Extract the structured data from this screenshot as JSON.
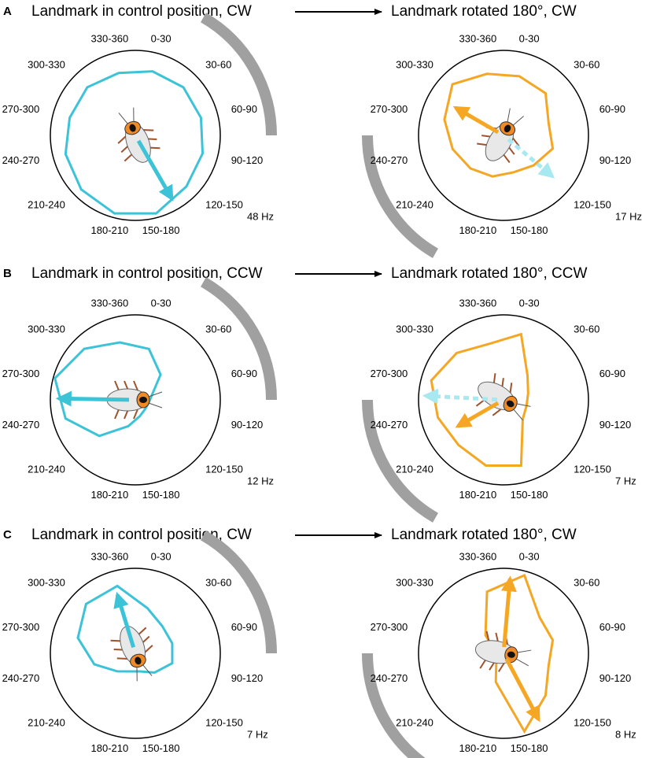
{
  "chart_data": [
    {
      "type": "radar",
      "panel": "A",
      "title": "Landmark in control position, CW",
      "annotation": "48 Hz",
      "categories": [
        "0-30",
        "30-60",
        "60-90",
        "90-120",
        "120-150",
        "150-180",
        "180-210",
        "210-240",
        "240-270",
        "270-300",
        "300-330",
        "330-360"
      ],
      "values": [
        0.78,
        0.8,
        0.8,
        0.82,
        0.85,
        0.95,
        0.95,
        0.9,
        0.85,
        0.8,
        0.8,
        0.76
      ],
      "color": "#3cc3d8",
      "ylim": [
        0,
        1
      ],
      "mean_vectors": [
        {
          "angle": 150,
          "length": 0.86,
          "color": "#3cc3d8",
          "dashed": false
        }
      ],
      "landmark_arc": [
        30,
        90
      ]
    },
    {
      "type": "radar",
      "title": "Landmark rotated 180°, CW",
      "annotation": "17 Hz",
      "categories": [
        "0-30",
        "30-60",
        "60-90",
        "90-120",
        "120-150",
        "150-180",
        "180-210",
        "210-240",
        "240-270",
        "270-300",
        "300-330",
        "330-360"
      ],
      "values": [
        0.72,
        0.7,
        0.55,
        0.6,
        0.5,
        0.45,
        0.5,
        0.55,
        0.62,
        0.72,
        0.85,
        0.75
      ],
      "color": "#f5a623",
      "ylim": [
        0,
        1
      ],
      "mean_vectors": [
        {
          "angle": 300,
          "length": 0.65,
          "color": "#f5a623",
          "dashed": false
        },
        {
          "angle": 130,
          "length": 0.75,
          "color": "#a8e8f0",
          "dashed": true
        }
      ],
      "landmark_arc": [
        210,
        270
      ]
    },
    {
      "type": "radar",
      "panel": "B",
      "title": "Landmark in control position, CCW",
      "annotation": "12 Hz",
      "categories": [
        "0-30",
        "30-60",
        "60-90",
        "90-120",
        "120-150",
        "150-180",
        "180-210",
        "210-240",
        "240-270",
        "270-300",
        "300-330",
        "330-360"
      ],
      "values": [
        0.62,
        0.42,
        0.2,
        0.16,
        0.16,
        0.2,
        0.32,
        0.6,
        0.85,
        0.98,
        0.85,
        0.7
      ],
      "color": "#3cc3d8",
      "ylim": [
        0,
        1
      ],
      "mean_vectors": [
        {
          "angle": 271,
          "length": 0.9,
          "color": "#3cc3d8",
          "dashed": false
        }
      ],
      "landmark_arc": [
        30,
        90
      ]
    },
    {
      "type": "radar",
      "title": "Landmark rotated 180°, CCW",
      "annotation": "7 Hz",
      "categories": [
        "0-30",
        "30-60",
        "60-90",
        "90-120",
        "120-150",
        "150-180",
        "180-210",
        "210-240",
        "240-270",
        "270-300",
        "300-330",
        "330-360"
      ],
      "values": [
        0.8,
        0.4,
        0.3,
        0.28,
        0.32,
        0.8,
        0.8,
        0.75,
        0.8,
        0.88,
        0.78,
        0.68
      ],
      "color": "#f5a623",
      "ylim": [
        0,
        1
      ],
      "mean_vectors": [
        {
          "angle": 240,
          "length": 0.62,
          "color": "#f5a623",
          "dashed": false
        },
        {
          "angle": 273,
          "length": 0.92,
          "color": "#a8e8f0",
          "dashed": true
        }
      ],
      "landmark_arc": [
        210,
        270
      ]
    },
    {
      "type": "radar",
      "panel": "C",
      "title": "Landmark in control position, CW",
      "annotation": "7 Hz",
      "categories": [
        "0-30",
        "30-60",
        "60-90",
        "90-120",
        "120-150",
        "150-180",
        "180-210",
        "210-240",
        "240-270",
        "270-300",
        "300-330",
        "330-360"
      ],
      "values": [
        0.55,
        0.45,
        0.45,
        0.45,
        0.32,
        0.22,
        0.22,
        0.3,
        0.5,
        0.7,
        0.82,
        0.82
      ],
      "color": "#3cc3d8",
      "ylim": [
        0,
        1
      ],
      "mean_vectors": [
        {
          "angle": 343,
          "length": 0.72,
          "color": "#3cc3d8",
          "dashed": false
        }
      ],
      "landmark_arc": [
        30,
        90
      ]
    },
    {
      "type": "radar",
      "title": "Landmark rotated 180°, CW",
      "annotation": "8 Hz",
      "categories": [
        "0-30",
        "30-60",
        "60-90",
        "90-120",
        "120-150",
        "150-180",
        "180-210",
        "210-240",
        "240-270",
        "270-300",
        "300-330",
        "330-360"
      ],
      "values": [
        0.95,
        0.6,
        0.6,
        0.55,
        0.7,
        0.95,
        0.35,
        0.12,
        0.1,
        0.1,
        0.3,
        0.75
      ],
      "color": "#f5a623",
      "ylim": [
        0,
        1
      ],
      "mean_vectors": [
        {
          "angle": 5,
          "length": 0.88,
          "color": "#f5a623",
          "dashed": false
        },
        {
          "angle": 152,
          "length": 0.88,
          "color": "#f5a623",
          "dashed": false
        }
      ],
      "landmark_arc": [
        210,
        270
      ]
    }
  ]
}
